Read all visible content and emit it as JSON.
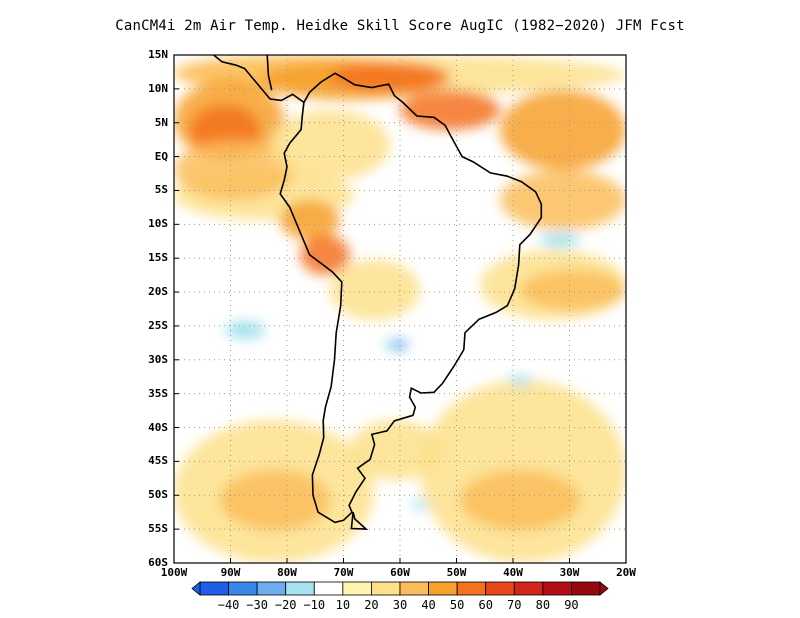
{
  "title": "CanCM4i  2m Air Temp. Heidke Skill Score AugIC (1982−2020) JFM Fcst",
  "map": {
    "lat_labels": [
      "15N",
      "10N",
      "5N",
      "EQ",
      "5S",
      "10S",
      "15S",
      "20S",
      "25S",
      "30S",
      "35S",
      "40S",
      "45S",
      "50S",
      "55S",
      "60S"
    ],
    "lon_labels": [
      "100W",
      "90W",
      "80W",
      "70W",
      "60W",
      "50W",
      "40W",
      "30W",
      "20W"
    ],
    "lat_range": [
      -60,
      15
    ],
    "lon_range": [
      -100,
      -20
    ],
    "grid": "dotted"
  },
  "colorbar": {
    "labels": [
      "−40",
      "−30",
      "−20",
      "−10",
      "10",
      "20",
      "30",
      "40",
      "50",
      "60",
      "70",
      "80",
      "90"
    ],
    "colors": [
      "#1f5ee6",
      "#3a87ea",
      "#6eaef0",
      "#a6e3ee",
      "#ffffff",
      "#fff4b0",
      "#fde089",
      "#fbbd5b",
      "#f7a02b",
      "#f4711d",
      "#e9461a",
      "#d3261a",
      "#b30e16",
      "#96080d"
    ]
  }
}
